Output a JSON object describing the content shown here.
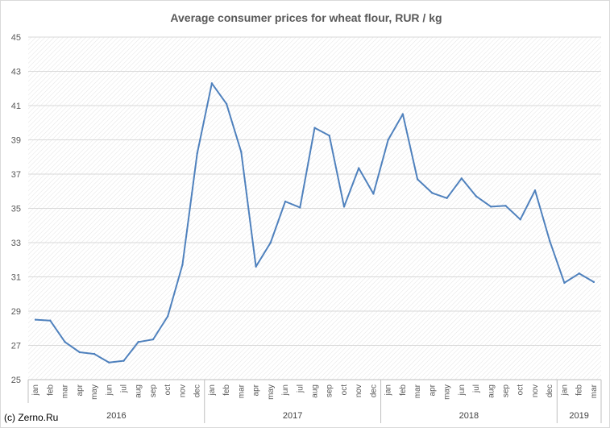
{
  "chart_data": {
    "type": "line",
    "title": "Average consumer prices for wheat flour, RUR / kg",
    "xlabel": "",
    "ylabel": "",
    "ylim": [
      25,
      45
    ],
    "y_ticks": [
      25,
      27,
      29,
      31,
      33,
      35,
      37,
      39,
      41,
      43,
      45
    ],
    "grid": true,
    "legend": "none",
    "colors": {
      "line": "#4f81bd",
      "background": "#ffffff",
      "grid": "#d9d9d9"
    },
    "categories": [
      "jan",
      "feb",
      "mar",
      "apr",
      "may",
      "jun",
      "jul",
      "aug",
      "sep",
      "oct",
      "nov",
      "dec",
      "jan",
      "feb",
      "mar",
      "apr",
      "may",
      "jun",
      "jul",
      "aug",
      "sep",
      "oct",
      "nov",
      "dec",
      "jan",
      "feb",
      "mar",
      "apr",
      "may",
      "jun",
      "jul",
      "aug",
      "sep",
      "oct",
      "nov",
      "dec",
      "jan",
      "feb",
      "mar"
    ],
    "groups": [
      {
        "label": "2016",
        "count": 12
      },
      {
        "label": "2017",
        "count": 12
      },
      {
        "label": "2018",
        "count": 12
      },
      {
        "label": "2019",
        "count": 3
      }
    ],
    "series": [
      {
        "values": [
          28.5,
          28.45,
          27.2,
          26.6,
          26.5,
          26.0,
          26.1,
          27.2,
          27.35,
          28.7,
          31.7,
          38.2,
          42.3,
          41.1,
          38.3,
          31.6,
          33.0,
          35.4,
          35.05,
          39.7,
          39.25,
          35.1,
          37.35,
          35.85,
          39.0,
          40.5,
          36.7,
          35.9,
          35.6,
          36.75,
          35.7,
          35.1,
          35.15,
          34.35,
          36.05,
          33.1,
          30.65,
          31.2,
          30.7
        ]
      }
    ]
  },
  "credit": "(c) Zerno.Ru"
}
